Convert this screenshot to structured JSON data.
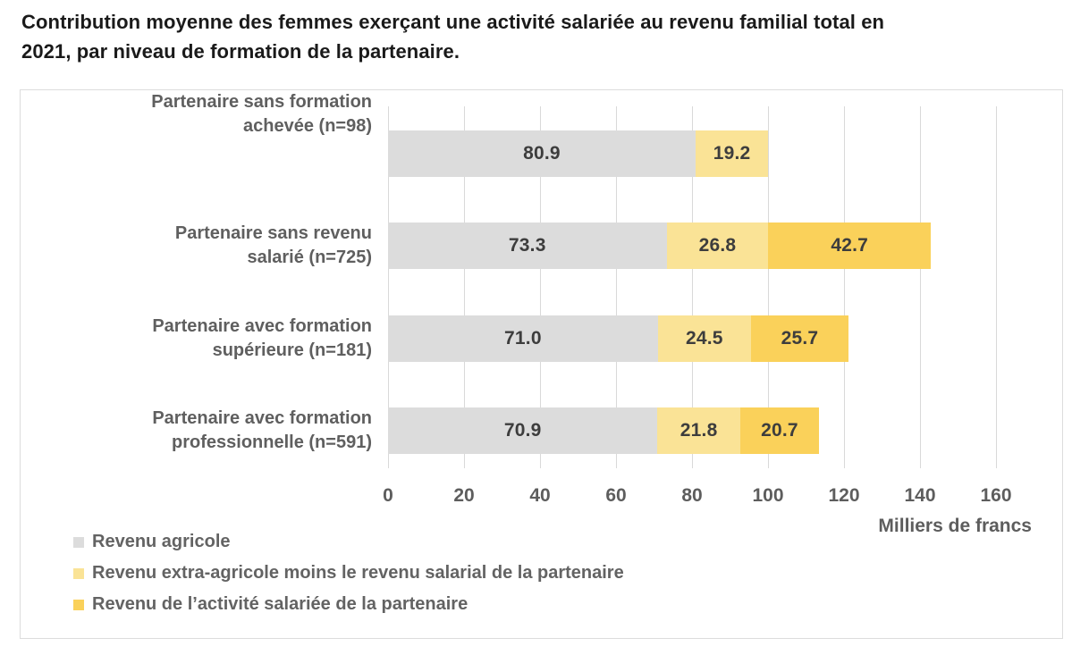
{
  "header": {
    "title_lines": [
      "Contribution moyenne des femmes exerçant une activité salariée au revenu familial total en",
      "2021, par niveau de formation de la partenaire."
    ]
  },
  "chart_data": {
    "type": "bar",
    "orientation": "horizontal",
    "stacked": true,
    "title": "Contribution moyenne des femmes exerçant une activité salariée au revenu familial total en 2021, par niveau de formation de la partenaire.",
    "categories": [
      [
        "Partenaire sans revenu",
        "salarié (n=725)"
      ],
      [
        "Partenaire avec formation",
        "supérieure (n=181)"
      ],
      [
        "Partenaire avec formation",
        "professionnelle (n=591)"
      ],
      [
        "Partenaire sans formation",
        "achevée (n=98)"
      ]
    ],
    "series": [
      {
        "name": "Revenu agricole",
        "color": "#dcdcdc",
        "values": [
          80.9,
          73.3,
          71.0,
          70.9
        ]
      },
      {
        "name": "Revenu extra-agricole moins le revenu salarial de la partenaire",
        "color": "#fae396",
        "values": [
          19.2,
          26.8,
          24.5,
          21.8
        ]
      },
      {
        "name": "Revenu de l’activité salariée de la partenaire",
        "color": "#fad15a",
        "values": [
          0,
          42.7,
          25.7,
          20.7
        ]
      }
    ],
    "xlabel": "Milliers de francs",
    "xlim": [
      0,
      160
    ],
    "xticks": [
      0,
      20,
      40,
      60,
      80,
      100,
      120,
      140,
      160
    ],
    "grid": true,
    "legend_position": "bottom-left",
    "value_labels": true,
    "value_label_color": "#3d3d3d",
    "gridline_color": "#d9d9d9"
  }
}
